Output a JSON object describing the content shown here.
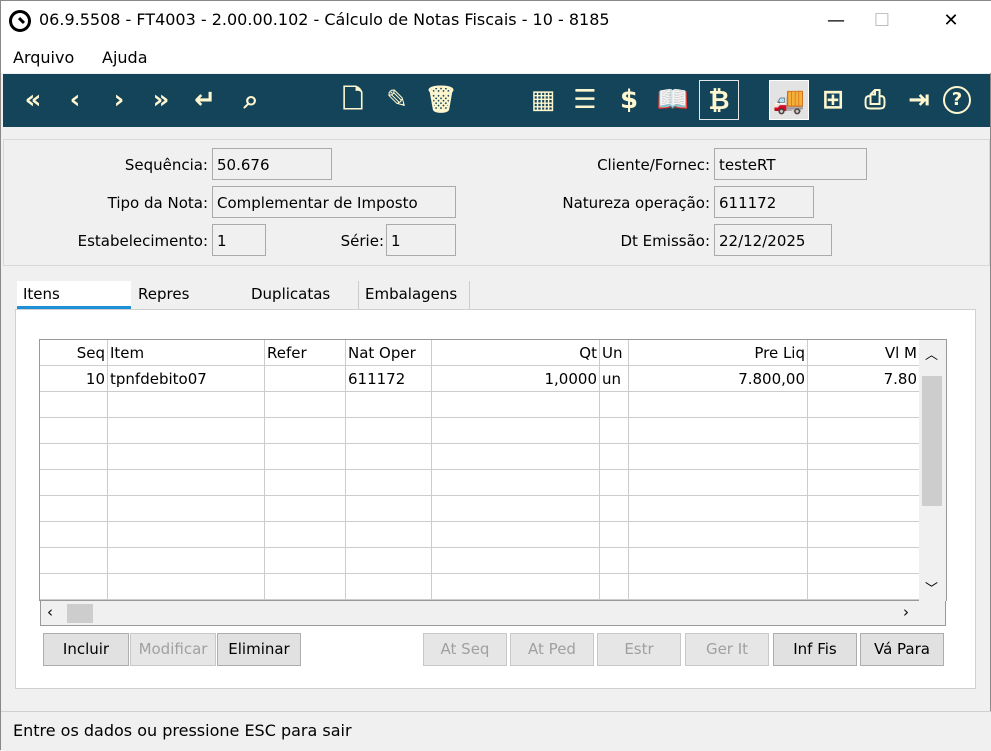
{
  "window": {
    "title": "06.9.5508 - FT4003 - 2.00.00.102 - Cálculo de Notas Fiscais - 10 - 8185",
    "minimize": "—",
    "maximize": "☐",
    "close": "✕"
  },
  "menu": [
    "Arquivo",
    "Ajuda"
  ],
  "toolbar": [
    {
      "name": "first-record-icon",
      "glyph": "«"
    },
    {
      "name": "previous-record-icon",
      "glyph": "‹"
    },
    {
      "name": "next-record-icon",
      "glyph": "›"
    },
    {
      "name": "last-record-icon",
      "glyph": "»"
    },
    {
      "name": "goto-return-icon",
      "glyph": "↵"
    },
    {
      "name": "search-icon",
      "glyph": "⌕"
    },
    {
      "name": "new-document-icon",
      "glyph": "🗋"
    },
    {
      "name": "edit-document-icon",
      "glyph": "✎"
    },
    {
      "name": "trash-icon",
      "glyph": "🗑"
    },
    {
      "name": "calculator-icon",
      "glyph": "▦"
    },
    {
      "name": "certificate-list-icon",
      "glyph": "☰"
    },
    {
      "name": "dollar-icon",
      "glyph": "$"
    },
    {
      "name": "open-book-icon",
      "glyph": "📖"
    },
    {
      "name": "invoice-dollar-icon",
      "glyph": "₿"
    },
    {
      "name": "truck-icon",
      "glyph": "🚚"
    },
    {
      "name": "hierarchy-icon",
      "glyph": "⊞"
    },
    {
      "name": "printer-icon",
      "glyph": "⎙"
    },
    {
      "name": "exit-icon",
      "glyph": "⇥"
    },
    {
      "name": "help-icon",
      "glyph": "?"
    }
  ],
  "header": {
    "sequencia": {
      "label": "Sequência:",
      "value": "50.676"
    },
    "tipo_nota": {
      "label": "Tipo da Nota:",
      "value": "Complementar de Imposto"
    },
    "estabelecimento": {
      "label": "Estabelecimento:",
      "value": "1"
    },
    "serie": {
      "label": "Série:",
      "value": "1"
    },
    "cliente": {
      "label": "Cliente/Fornec:",
      "value": "testeRT"
    },
    "natureza": {
      "label": "Natureza operação:",
      "value": "611172"
    },
    "dt_emissao": {
      "label": "Dt Emissão:",
      "value": "22/12/2025"
    }
  },
  "tabs": [
    "Itens",
    "Repres",
    "Duplicatas",
    "Embalagens"
  ],
  "grid": {
    "columns": [
      "Seq",
      "Item",
      "Refer",
      "Nat Oper",
      "Qt",
      "Un",
      "Pre Liq",
      "Vl M"
    ],
    "rows": [
      [
        "10",
        "tpnfdebito07",
        "",
        "611172",
        "1,0000",
        "un",
        "7.800,00",
        "7.80"
      ]
    ]
  },
  "buttons": [
    {
      "label": "Incluir",
      "enabled": true
    },
    {
      "label": "Modificar",
      "enabled": false
    },
    {
      "label": "Eliminar",
      "enabled": true
    },
    {
      "label": "At Seq",
      "enabled": false
    },
    {
      "label": "At Ped",
      "enabled": false
    },
    {
      "label": "Estr",
      "enabled": false
    },
    {
      "label": "Ger It",
      "enabled": false
    },
    {
      "label": "Inf Fis",
      "enabled": true
    },
    {
      "label": "Vá Para",
      "enabled": true
    }
  ],
  "status": "Entre os dados ou pressione ESC para sair",
  "colors": {
    "toolbar": "#14445a",
    "icon": "#fdf6cf",
    "tab_active": "#1e90d8"
  }
}
